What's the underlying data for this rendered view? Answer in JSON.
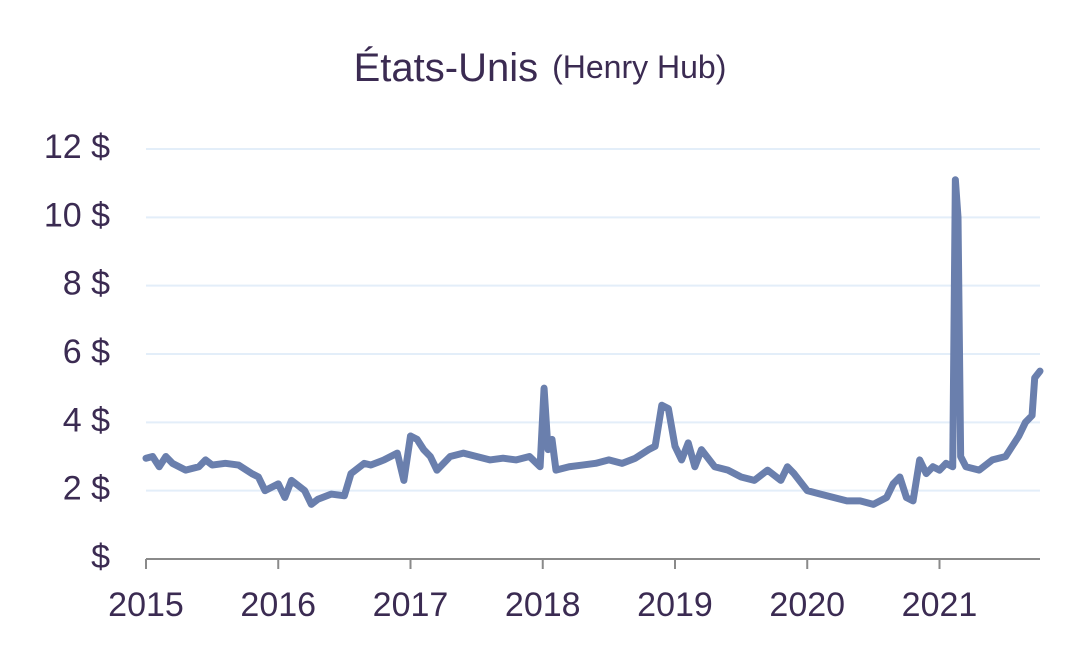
{
  "chart_data": {
    "type": "line",
    "title": "États-Unis",
    "subtitle": "(Henry Hub)",
    "series": [
      {
        "name": "Henry Hub",
        "color": "#6a7fad",
        "x": [
          2015.0,
          2015.05,
          2015.1,
          2015.15,
          2015.2,
          2015.3,
          2015.4,
          2015.45,
          2015.5,
          2015.6,
          2015.7,
          2015.8,
          2015.85,
          2015.9,
          2015.95,
          2016.0,
          2016.05,
          2016.1,
          2016.2,
          2016.25,
          2016.3,
          2016.4,
          2016.5,
          2016.55,
          2016.65,
          2016.7,
          2016.8,
          2016.9,
          2016.95,
          2017.0,
          2017.05,
          2017.1,
          2017.15,
          2017.2,
          2017.3,
          2017.4,
          2017.5,
          2017.6,
          2017.7,
          2017.8,
          2017.9,
          2017.98,
          2018.01,
          2018.04,
          2018.07,
          2018.1,
          2018.2,
          2018.3,
          2018.4,
          2018.5,
          2018.6,
          2018.7,
          2018.8,
          2018.85,
          2018.9,
          2018.95,
          2019.0,
          2019.05,
          2019.1,
          2019.15,
          2019.2,
          2019.3,
          2019.4,
          2019.5,
          2019.6,
          2019.7,
          2019.8,
          2019.85,
          2019.9,
          2020.0,
          2020.1,
          2020.2,
          2020.3,
          2020.4,
          2020.5,
          2020.6,
          2020.65,
          2020.7,
          2020.75,
          2020.8,
          2020.85,
          2020.9,
          2020.95,
          2021.0,
          2021.05,
          2021.1,
          2021.12,
          2021.14,
          2021.16,
          2021.2,
          2021.3,
          2021.4,
          2021.5,
          2021.6,
          2021.65,
          2021.7,
          2021.72,
          2021.76
        ],
        "values": [
          2.95,
          3.0,
          2.7,
          3.0,
          2.8,
          2.6,
          2.7,
          2.9,
          2.75,
          2.8,
          2.75,
          2.5,
          2.4,
          2.0,
          2.1,
          2.2,
          1.8,
          2.3,
          2.0,
          1.6,
          1.75,
          1.9,
          1.85,
          2.5,
          2.8,
          2.75,
          2.9,
          3.1,
          2.3,
          3.6,
          3.5,
          3.2,
          3.0,
          2.6,
          3.0,
          3.1,
          3.0,
          2.9,
          2.95,
          2.9,
          3.0,
          2.7,
          5.0,
          3.2,
          3.5,
          2.6,
          2.7,
          2.75,
          2.8,
          2.9,
          2.8,
          2.95,
          3.2,
          3.3,
          4.5,
          4.4,
          3.3,
          2.9,
          3.4,
          2.7,
          3.2,
          2.7,
          2.6,
          2.4,
          2.3,
          2.6,
          2.3,
          2.7,
          2.5,
          2.0,
          1.9,
          1.8,
          1.7,
          1.7,
          1.6,
          1.8,
          2.2,
          2.4,
          1.8,
          1.7,
          2.9,
          2.5,
          2.7,
          2.6,
          2.8,
          2.7,
          11.1,
          10.0,
          3.0,
          2.7,
          2.6,
          2.9,
          3.0,
          3.6,
          4.0,
          4.2,
          5.3,
          5.5
        ]
      }
    ],
    "xlim": [
      2015,
      2021.76
    ],
    "xticks": [
      2015,
      2016,
      2017,
      2018,
      2019,
      2020,
      2021
    ],
    "ylim": [
      0,
      12
    ],
    "yticks": [
      {
        "value": 0,
        "label": "$"
      },
      {
        "value": 2,
        "label": "2 $"
      },
      {
        "value": 4,
        "label": "4 $"
      },
      {
        "value": 6,
        "label": "6 $"
      },
      {
        "value": 8,
        "label": "8 $"
      },
      {
        "value": 10,
        "label": "10 $"
      },
      {
        "value": 12,
        "label": "12 $"
      }
    ],
    "grid": true
  }
}
